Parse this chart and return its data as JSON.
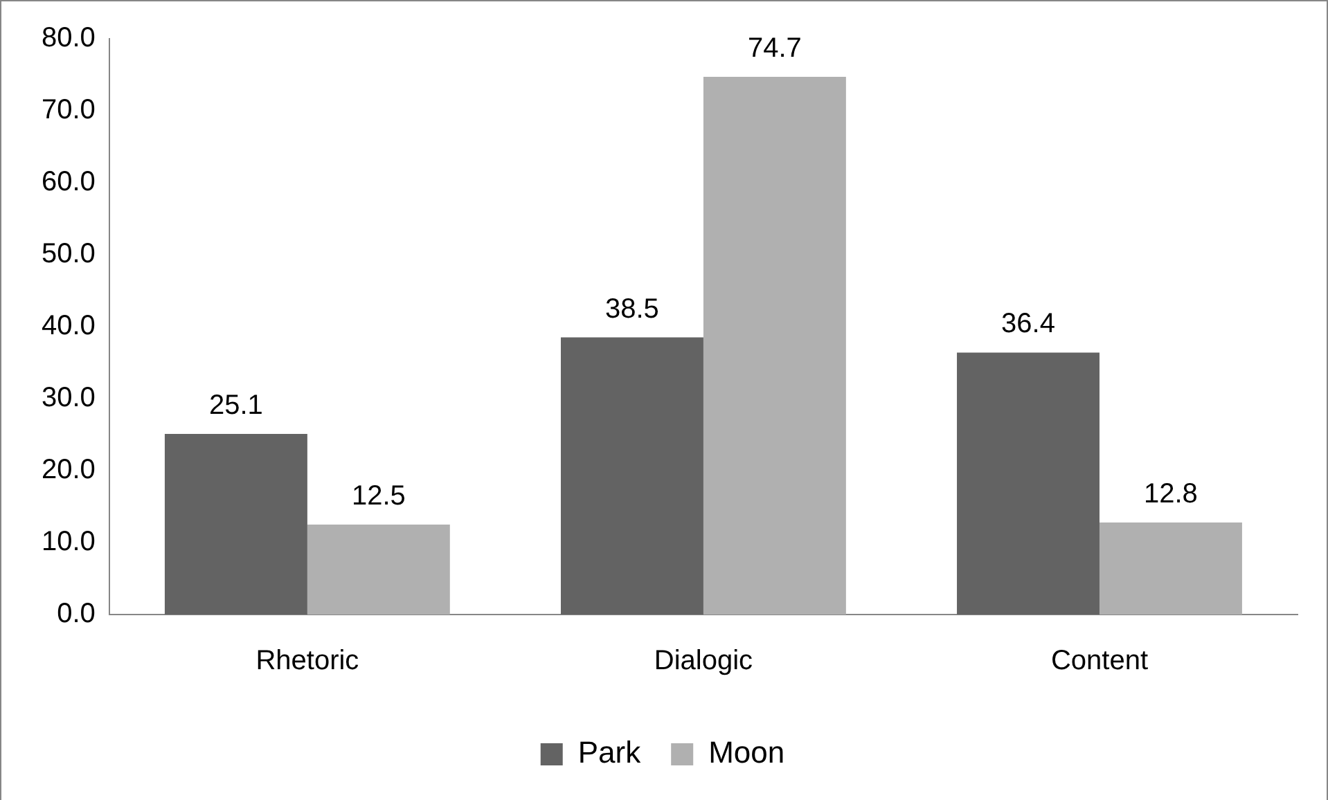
{
  "chart_data": {
    "type": "bar",
    "categories": [
      "Rhetoric",
      "Dialogic",
      "Content"
    ],
    "series": [
      {
        "name": "Park",
        "color": "#636363",
        "values": [
          25.1,
          38.5,
          36.4
        ]
      },
      {
        "name": "Moon",
        "color": "#b0b0b0",
        "values": [
          12.5,
          74.7,
          12.8
        ]
      }
    ],
    "ylim": [
      0,
      80
    ],
    "yticks": [
      {
        "value": 0,
        "label": "0.0"
      },
      {
        "value": 10,
        "label": "10.0"
      },
      {
        "value": 20,
        "label": "20.0"
      },
      {
        "value": 30,
        "label": "30.0"
      },
      {
        "value": 40,
        "label": "40.0"
      },
      {
        "value": 50,
        "label": "50.0"
      },
      {
        "value": 60,
        "label": "60.0"
      },
      {
        "value": 70,
        "label": "70.0"
      },
      {
        "value": 80,
        "label": "80.0"
      }
    ],
    "grid": false,
    "legend": "bottom",
    "data_labels": true
  }
}
